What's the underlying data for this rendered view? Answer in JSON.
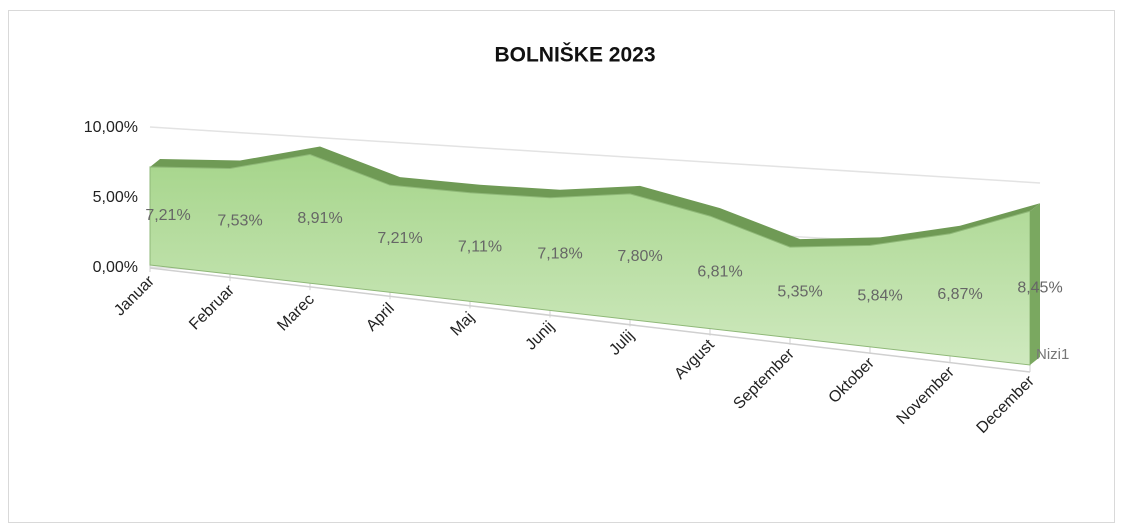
{
  "chart_data": {
    "type": "area3d",
    "title": "BOLNIŠKE 2023",
    "categories": [
      "Januar",
      "Februar",
      "Marec",
      "April",
      "Maj",
      "Junij",
      "Julij",
      "Avgust",
      "September",
      "Oktober",
      "November",
      "December"
    ],
    "series": [
      {
        "name": "Nizi1",
        "color": "#8fc770",
        "values": [
          7.21,
          7.53,
          8.91,
          7.21,
          7.11,
          7.18,
          7.8,
          6.81,
          5.35,
          5.84,
          6.87,
          8.45
        ],
        "value_labels": [
          "7,21%",
          "7,53%",
          "8,91%",
          "7,21%",
          "7,11%",
          "7,18%",
          "7,80%",
          "6,81%",
          "5,35%",
          "5,84%",
          "6,87%",
          "8,45%"
        ]
      }
    ],
    "ylim": [
      0,
      10
    ],
    "yticks": [
      {
        "value": 0,
        "label": "0,00%"
      },
      {
        "value": 5,
        "label": "5,00%"
      },
      {
        "value": 10,
        "label": "10,00%"
      }
    ],
    "grid": true
  }
}
